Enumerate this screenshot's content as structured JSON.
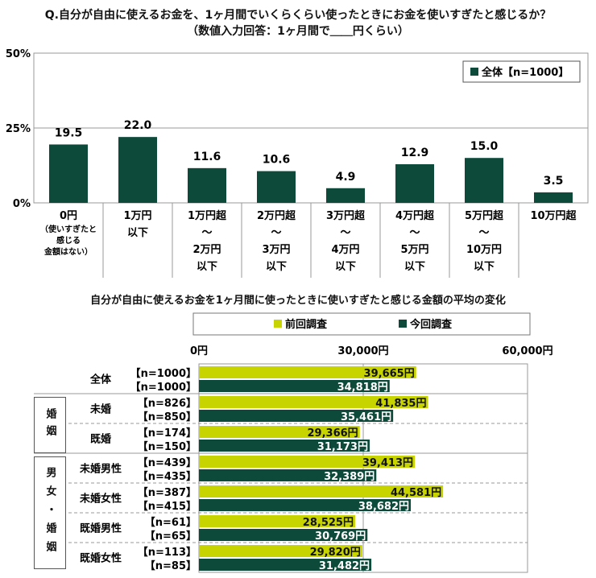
{
  "colors": {
    "current": "#0d4a3a",
    "previous": "#c8d400"
  },
  "chart_data": [
    {
      "type": "bar",
      "title": "Q.自分が自由に使えるお金を、1ヶ月間でいくらくらい使ったときにお金を使いすぎたと感じるか？",
      "subtitle": "（数値入力回答：1ヶ月間で＿＿円くらい）",
      "categories": [
        "0円\n（使いすぎたと\n感じる\n金額はない）",
        "1万円\n以下",
        "1万円超\n～\n2万円\n以下",
        "2万円超\n～\n3万円\n以下",
        "3万円超\n～\n4万円\n以下",
        "4万円超\n～\n5万円\n以下",
        "5万円超\n～\n10万円\n以下",
        "10万円超"
      ],
      "series": [
        {
          "name": "全体【n=1000】",
          "values": [
            19.5,
            22.0,
            11.6,
            10.6,
            4.9,
            12.9,
            15.0,
            3.5
          ]
        }
      ],
      "yticks": [
        "0%",
        "25%",
        "50%"
      ],
      "ylim": [
        0,
        50
      ],
      "legend": "top-right"
    },
    {
      "type": "bar",
      "orientation": "horizontal",
      "title": "自分が自由に使えるお金を1ヶ月間に使ったときに使いすぎたと感じる金額の平均の変化",
      "xticks": [
        "0円",
        "30,000円",
        "60,000円"
      ],
      "xlim": [
        0,
        60000
      ],
      "legend": "top",
      "series_names": [
        "前回調査",
        "今回調査"
      ],
      "groups": [
        {
          "section": "",
          "label": "全体",
          "n": [
            "【n=1000】",
            "【n=1000】"
          ],
          "values": [
            39665,
            34818
          ],
          "labels": [
            "39,665円",
            "34,818円"
          ]
        },
        {
          "section": "婚姻",
          "label": "未婚",
          "n": [
            "【n=826】",
            "【n=850】"
          ],
          "values": [
            41835,
            35461
          ],
          "labels": [
            "41,835円",
            "35,461円"
          ]
        },
        {
          "section": "婚姻",
          "label": "既婚",
          "n": [
            "【n=174】",
            "【n=150】"
          ],
          "values": [
            29366,
            31173
          ],
          "labels": [
            "29,366円",
            "31,173円"
          ]
        },
        {
          "section": "男女・婚姻",
          "label": "未婚男性",
          "n": [
            "【n=439】",
            "【n=435】"
          ],
          "values": [
            39413,
            32389
          ],
          "labels": [
            "39,413円",
            "32,389円"
          ]
        },
        {
          "section": "男女・婚姻",
          "label": "未婚女性",
          "n": [
            "【n=387】",
            "【n=415】"
          ],
          "values": [
            44581,
            38682
          ],
          "labels": [
            "44,581円",
            "38,682円"
          ]
        },
        {
          "section": "男女・婚姻",
          "label": "既婚男性",
          "n": [
            "【n=61】",
            "【n=65】"
          ],
          "values": [
            28525,
            30769
          ],
          "labels": [
            "28,525円",
            "30,769円"
          ]
        },
        {
          "section": "男女・婚姻",
          "label": "既婚女性",
          "n": [
            "【n=113】",
            "【n=85】"
          ],
          "values": [
            29820,
            31482
          ],
          "labels": [
            "29,820円",
            "31,482円"
          ]
        }
      ],
      "sections": [
        "婚姻",
        "男女・婚姻"
      ]
    }
  ]
}
